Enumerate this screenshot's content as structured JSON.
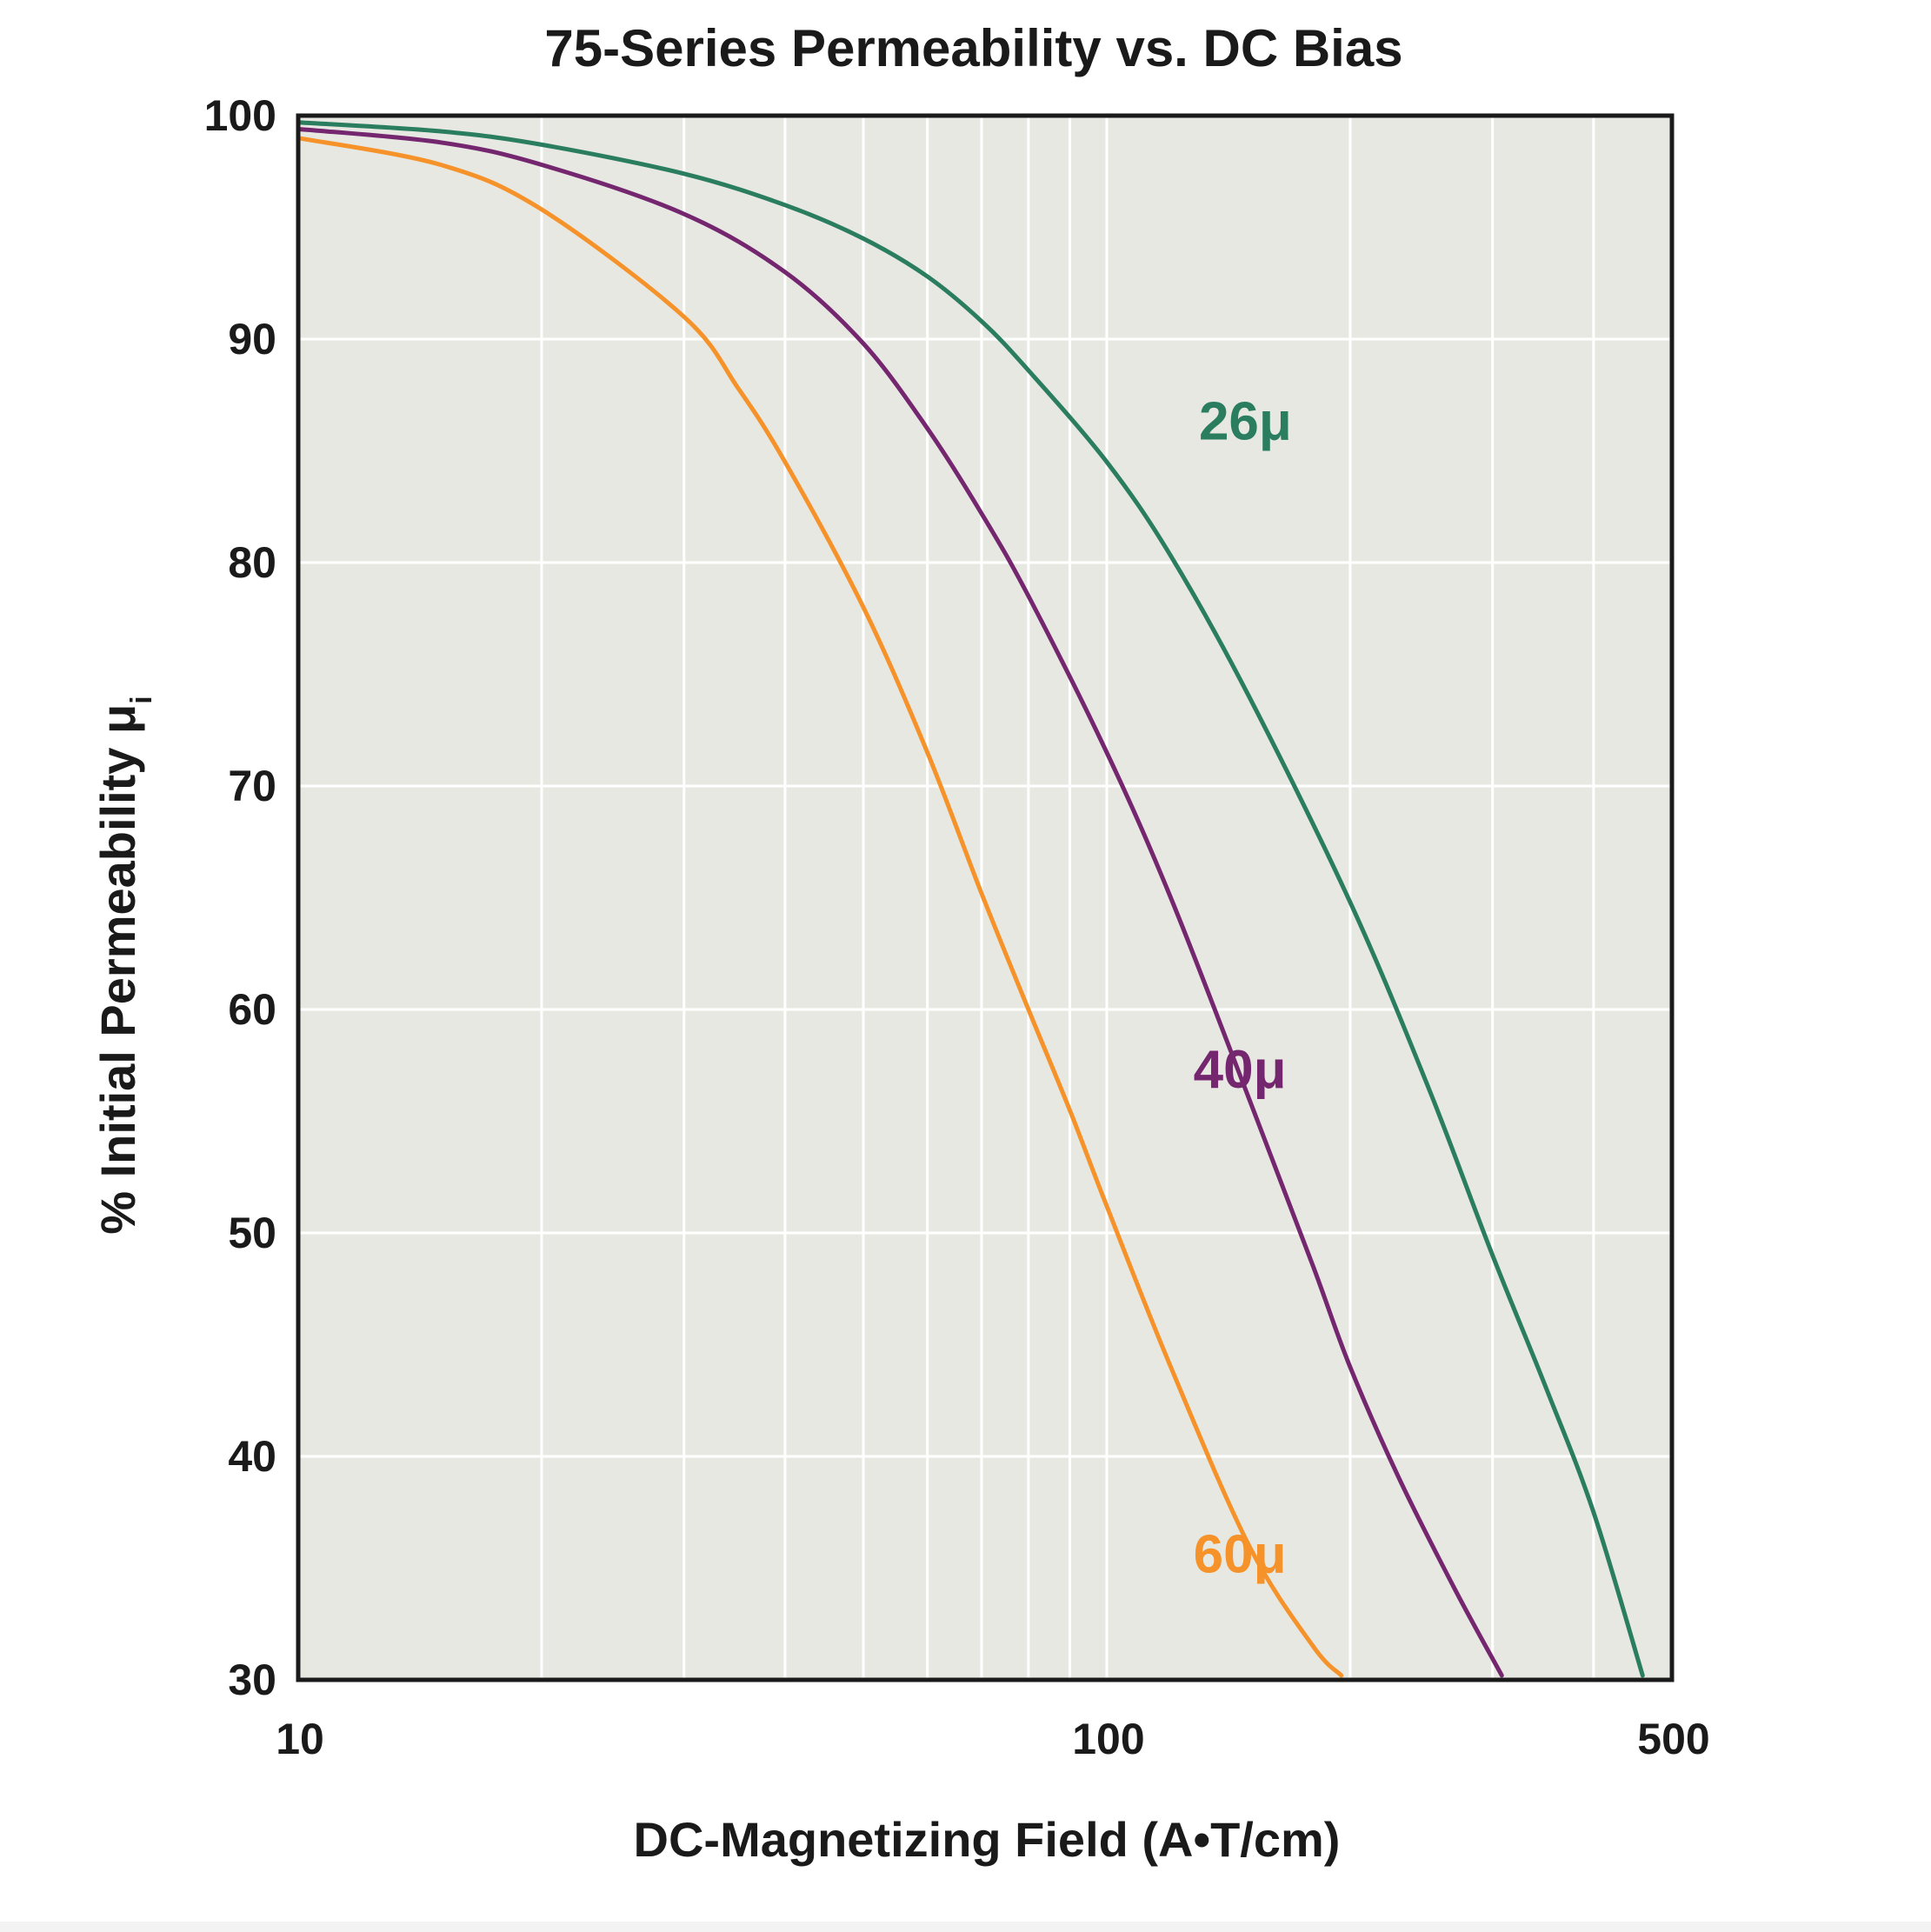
{
  "chart_data": {
    "type": "line",
    "title": "75-Series Permeability vs. DC Bias",
    "xlabel": "DC-Magnetizing Field (A•T/cm)",
    "ylabel": "% Initial Permeability μ",
    "ylabel_subscript": "i",
    "x_scale": "log",
    "xlim": [
      10,
      500
    ],
    "ylim": [
      30,
      100
    ],
    "x_ticks": [
      10,
      100,
      500
    ],
    "x_tick_labels": [
      "10",
      "100",
      "500"
    ],
    "y_ticks": [
      30,
      40,
      50,
      60,
      70,
      80,
      90,
      100
    ],
    "y_tick_labels": [
      "30",
      "40",
      "50",
      "60",
      "70",
      "80",
      "90",
      "100"
    ],
    "grid": true,
    "background_color": "#e8e8e3",
    "series": [
      {
        "name": "26μ",
        "color": "#2a7d5f",
        "x": [
          10,
          15,
          20,
          30,
          40,
          50,
          60,
          70,
          80,
          100,
          120,
          150,
          200,
          250,
          300,
          350,
          400,
          460
        ],
        "y": [
          99.7,
          99.3,
          98.7,
          97.4,
          96.0,
          94.5,
          92.8,
          90.8,
          88.6,
          84.5,
          80.3,
          74.0,
          64.8,
          56.5,
          49.0,
          43.0,
          37.5,
          30.2
        ]
      },
      {
        "name": "40μ",
        "color": "#74266f",
        "x": [
          10,
          15,
          20,
          30,
          40,
          50,
          60,
          70,
          80,
          100,
          120,
          150,
          180,
          200,
          230,
          270,
          308
        ],
        "y": [
          99.4,
          98.8,
          97.8,
          95.6,
          93.0,
          89.8,
          86.0,
          82.2,
          78.5,
          71.5,
          65.0,
          56.0,
          48.5,
          44.0,
          39.0,
          34.0,
          30.2
        ]
      },
      {
        "name": "60μ",
        "color": "#f5922a",
        "x": [
          10,
          15,
          20,
          30,
          35,
          40,
          50,
          60,
          70,
          80,
          90,
          100,
          120,
          150,
          180,
          195
        ],
        "y": [
          99.0,
          97.8,
          95.8,
          91.0,
          87.8,
          84.5,
          78.0,
          71.5,
          65.2,
          60.0,
          55.5,
          51.2,
          44.0,
          36.0,
          31.5,
          30.2
        ]
      }
    ],
    "annotations": [
      {
        "text": "26μ",
        "x": 130,
        "y": 85.5,
        "color": "#2a7d5f"
      },
      {
        "text": "40μ",
        "x": 128,
        "y": 56.5,
        "color": "#74266f"
      },
      {
        "text": "60μ",
        "x": 128,
        "y": 34.8,
        "color": "#f5922a"
      }
    ]
  }
}
